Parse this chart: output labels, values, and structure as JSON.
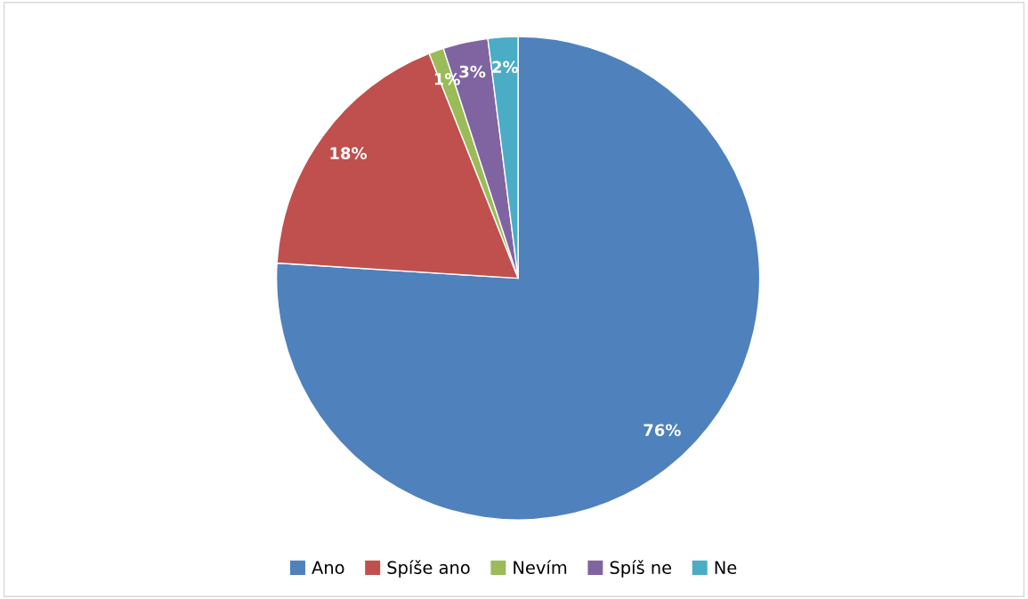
{
  "chart_data": {
    "type": "pie",
    "categories": [
      "Ano",
      "Spíše ano",
      "Nevím",
      "Spíš ne",
      "Ne"
    ],
    "values": [
      76,
      18,
      1,
      3,
      2
    ],
    "colors": [
      "#4f81bd",
      "#c0504d",
      "#9bbb59",
      "#8064a2",
      "#4bacc6"
    ],
    "value_labels": [
      "76%",
      "18%",
      "1%",
      "3%",
      "2%"
    ],
    "legend": "bottom"
  }
}
